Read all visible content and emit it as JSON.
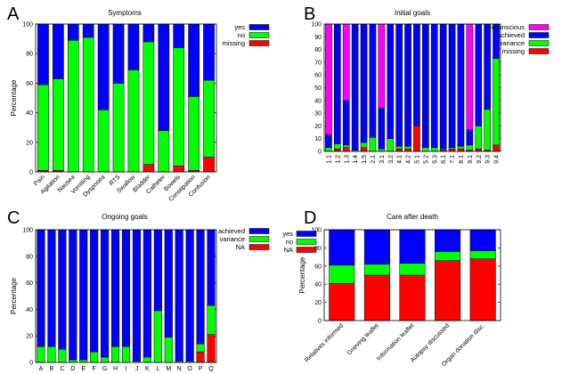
{
  "chart_data": [
    {
      "letter": "A",
      "type": "bar",
      "stacked": true,
      "title": "Symptoms",
      "ylabel": "Percentage",
      "xlabel": "",
      "ylim": [
        0,
        100
      ],
      "yticks": [
        "0",
        "20",
        "40",
        "60",
        "80",
        "100"
      ],
      "legend_position": "top-right",
      "label_rotation": "rotated",
      "categories": [
        "Pain",
        "Agitation",
        "Nausea",
        "Vomiting",
        "Dyspnoea",
        "RTS",
        "Swallow",
        "Bladder",
        "Catheter",
        "Bowels",
        "Constipation",
        "Confusion"
      ],
      "series": [
        {
          "name": "missing",
          "color": "#ff0000",
          "values": [
            1,
            1,
            0,
            0,
            0,
            0,
            0,
            5,
            0,
            4,
            1,
            10
          ]
        },
        {
          "name": "no",
          "color": "#00ff00",
          "values": [
            58,
            62,
            89,
            91,
            42,
            60,
            69,
            83,
            28,
            80,
            50,
            52
          ]
        },
        {
          "name": "yes",
          "color": "#0000ff",
          "values": [
            41,
            37,
            11,
            9,
            58,
            40,
            31,
            12,
            72,
            16,
            49,
            38
          ]
        }
      ],
      "legend": [
        "yes",
        "no",
        "missing"
      ]
    },
    {
      "letter": "B",
      "type": "bar",
      "stacked": true,
      "title": "Initial goals",
      "ylabel": "",
      "xlabel": "",
      "ylim": [
        0,
        100
      ],
      "yticks": [
        "0",
        "10",
        "20",
        "30",
        "40",
        "50",
        "60",
        "70",
        "80",
        "90",
        "100"
      ],
      "legend_position": "top-right",
      "label_rotation": "vertical",
      "categories": [
        "1.1",
        "1.2",
        "1.3",
        "1.4",
        "1.5",
        "2.1",
        "3.1",
        "3.2",
        "4.1",
        "4.2",
        "5.1",
        "5.2",
        "5.3",
        "6.1",
        "7.1",
        "8.1",
        "9.1",
        "9.2",
        "9.3",
        "9.4"
      ],
      "series": [
        {
          "name": "missing",
          "color": "#ff0000",
          "values": [
            0,
            2,
            3,
            0,
            3,
            0,
            0,
            0,
            2,
            2,
            20,
            0,
            0,
            1,
            2,
            2,
            1,
            2,
            1,
            5
          ]
        },
        {
          "name": "variance",
          "color": "#00ff00",
          "values": [
            3,
            4,
            2,
            1,
            4,
            11,
            2,
            10,
            2,
            2,
            0,
            3,
            3,
            1,
            1,
            2,
            4,
            18,
            32,
            68
          ]
        },
        {
          "name": "achieved",
          "color": "#0000ff",
          "values": [
            10,
            94,
            35,
            99,
            93,
            89,
            32,
            90,
            96,
            96,
            80,
            97,
            97,
            98,
            97,
            96,
            12,
            80,
            67,
            27
          ]
        },
        {
          "name": "unconscious",
          "color": "#ff00ff",
          "values": [
            87,
            0,
            60,
            0,
            0,
            0,
            66,
            0,
            0,
            0,
            0,
            0,
            0,
            0,
            0,
            0,
            83,
            0,
            0,
            0
          ]
        }
      ],
      "legend": [
        "unconscious",
        "achieved",
        "variance",
        "missing"
      ]
    },
    {
      "letter": "C",
      "type": "bar",
      "stacked": true,
      "title": "Ongoing goals",
      "ylabel": "Percentage",
      "xlabel": "",
      "ylim": [
        0,
        100
      ],
      "yticks": [
        "0",
        "20",
        "40",
        "60",
        "80",
        "100"
      ],
      "legend_position": "top-right",
      "label_rotation": "none",
      "categories": [
        "A",
        "B",
        "C",
        "D",
        "E",
        "F",
        "G",
        "H",
        "I",
        "J",
        "K",
        "L",
        "M",
        "N",
        "O",
        "P",
        "Q"
      ],
      "series": [
        {
          "name": "NA",
          "color": "#ff0000",
          "values": [
            0,
            0,
            0,
            0,
            0,
            0,
            0,
            0,
            0,
            0,
            0,
            0,
            0,
            0,
            0,
            8,
            21
          ]
        },
        {
          "name": "variance",
          "color": "#00ff00",
          "values": [
            12,
            12,
            10,
            2,
            2,
            8,
            4,
            12,
            12,
            1,
            4,
            39,
            19,
            1,
            1,
            6,
            22
          ]
        },
        {
          "name": "achieved",
          "color": "#0000ff",
          "values": [
            88,
            88,
            90,
            98,
            98,
            92,
            96,
            88,
            88,
            99,
            96,
            61,
            81,
            99,
            99,
            86,
            57
          ]
        }
      ],
      "legend": [
        "achieved",
        "variance",
        "NA"
      ]
    },
    {
      "letter": "D",
      "type": "bar",
      "stacked": true,
      "title": "Care after death",
      "ylabel": "Percentage",
      "xlabel": "",
      "ylim": [
        0,
        100
      ],
      "yticks": [
        "0",
        "20",
        "40",
        "60",
        "80",
        "100"
      ],
      "legend_position": "top-left",
      "label_rotation": "rotated",
      "categories": [
        "Relatives informed",
        "Grieving leaflet",
        "Information leaflet",
        "Autopsy  discussed",
        "Organ donation disc."
      ],
      "series": [
        {
          "name": "NA",
          "color": "#ff0000",
          "values": [
            41,
            50,
            50,
            66,
            68
          ]
        },
        {
          "name": "no",
          "color": "#00ff00",
          "values": [
            20,
            12,
            13,
            10,
            9
          ]
        },
        {
          "name": "yes",
          "color": "#0000ff",
          "values": [
            39,
            38,
            37,
            24,
            23
          ]
        }
      ],
      "legend": [
        "yes",
        "no",
        "NA"
      ]
    }
  ]
}
